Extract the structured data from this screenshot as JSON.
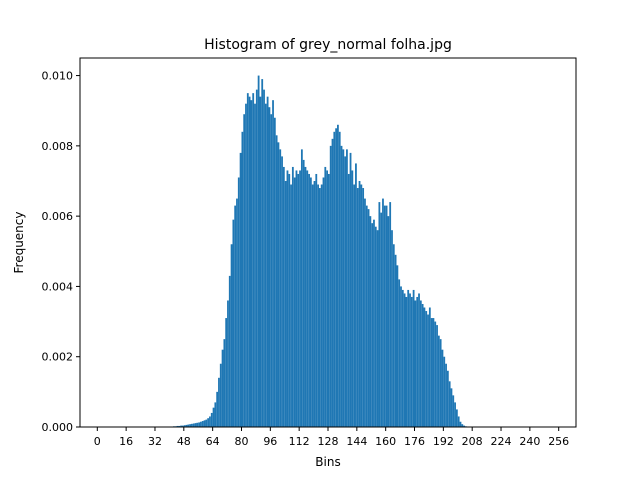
{
  "chart_data": {
    "type": "bar",
    "title": "Histogram of grey_normal folha.jpg",
    "xlabel": "Bins",
    "ylabel": "Frequency",
    "xlim": [
      -9.6,
      265.6
    ],
    "ylim": [
      0.0,
      0.0105
    ],
    "x_ticks": [
      0,
      16,
      32,
      48,
      64,
      80,
      96,
      112,
      128,
      144,
      160,
      176,
      192,
      208,
      224,
      240,
      256
    ],
    "y_ticks": [
      "0.000",
      "0.002",
      "0.004",
      "0.006",
      "0.008",
      "0.010"
    ],
    "y_tick_values": [
      0.0,
      0.002,
      0.004,
      0.006,
      0.008,
      0.01
    ],
    "bar_color": "#1f77b4",
    "bin_width": 1,
    "bins_start": 40,
    "values": [
      1e-05,
      1e-05,
      2e-05,
      2e-05,
      3e-05,
      3e-05,
      4e-05,
      4e-05,
      5e-05,
      6e-05,
      7e-05,
      8e-05,
      9e-05,
      0.0001,
      0.00011,
      0.00012,
      0.00013,
      0.00015,
      0.00017,
      0.00019,
      0.00021,
      0.00025,
      0.0003,
      0.0004,
      0.00055,
      0.0007,
      0.001,
      0.0014,
      0.0018,
      0.0022,
      0.0025,
      0.0031,
      0.0036,
      0.0043,
      0.0052,
      0.0059,
      0.0063,
      0.0065,
      0.0071,
      0.0078,
      0.0084,
      0.0089,
      0.0092,
      0.0095,
      0.0094,
      0.0093,
      0.0095,
      0.0092,
      0.0096,
      0.01,
      0.0094,
      0.0099,
      0.0096,
      0.0092,
      0.0094,
      0.0091,
      0.0089,
      0.0093,
      0.0088,
      0.0083,
      0.0081,
      0.0079,
      0.0077,
      0.0074,
      0.007,
      0.0073,
      0.0072,
      0.0069,
      0.0074,
      0.0071,
      0.0073,
      0.0072,
      0.0073,
      0.0079,
      0.0076,
      0.0074,
      0.0073,
      0.0072,
      0.0071,
      0.0069,
      0.007,
      0.0072,
      0.0069,
      0.0068,
      0.0069,
      0.0071,
      0.0074,
      0.0073,
      0.0072,
      0.008,
      0.0082,
      0.0084,
      0.0085,
      0.0086,
      0.0084,
      0.008,
      0.0079,
      0.0077,
      0.0079,
      0.0072,
      0.0078,
      0.0073,
      0.0069,
      0.0075,
      0.0068,
      0.007,
      0.0069,
      0.0068,
      0.0065,
      0.0063,
      0.0062,
      0.006,
      0.0058,
      0.0059,
      0.0057,
      0.0056,
      0.0064,
      0.0061,
      0.0065,
      0.0063,
      0.0063,
      0.006,
      0.0064,
      0.0056,
      0.0052,
      0.0049,
      0.0046,
      0.0042,
      0.004,
      0.0039,
      0.0038,
      0.0037,
      0.0039,
      0.0038,
      0.0037,
      0.0039,
      0.0036,
      0.0037,
      0.0038,
      0.0036,
      0.0035,
      0.0034,
      0.0033,
      0.0032,
      0.0034,
      0.0031,
      0.0031,
      0.003,
      0.0029,
      0.0026,
      0.0025,
      0.0022,
      0.002,
      0.0018,
      0.0016,
      0.0013,
      0.0011,
      0.0009,
      0.0007,
      0.0005,
      0.0003,
      0.00015,
      8e-05,
      4e-05,
      2e-05,
      1e-05,
      1e-05,
      1e-05,
      1e-05,
      1e-05,
      1e-05,
      1e-05,
      1e-05,
      1e-05
    ],
    "grid": false,
    "legend": "none"
  }
}
